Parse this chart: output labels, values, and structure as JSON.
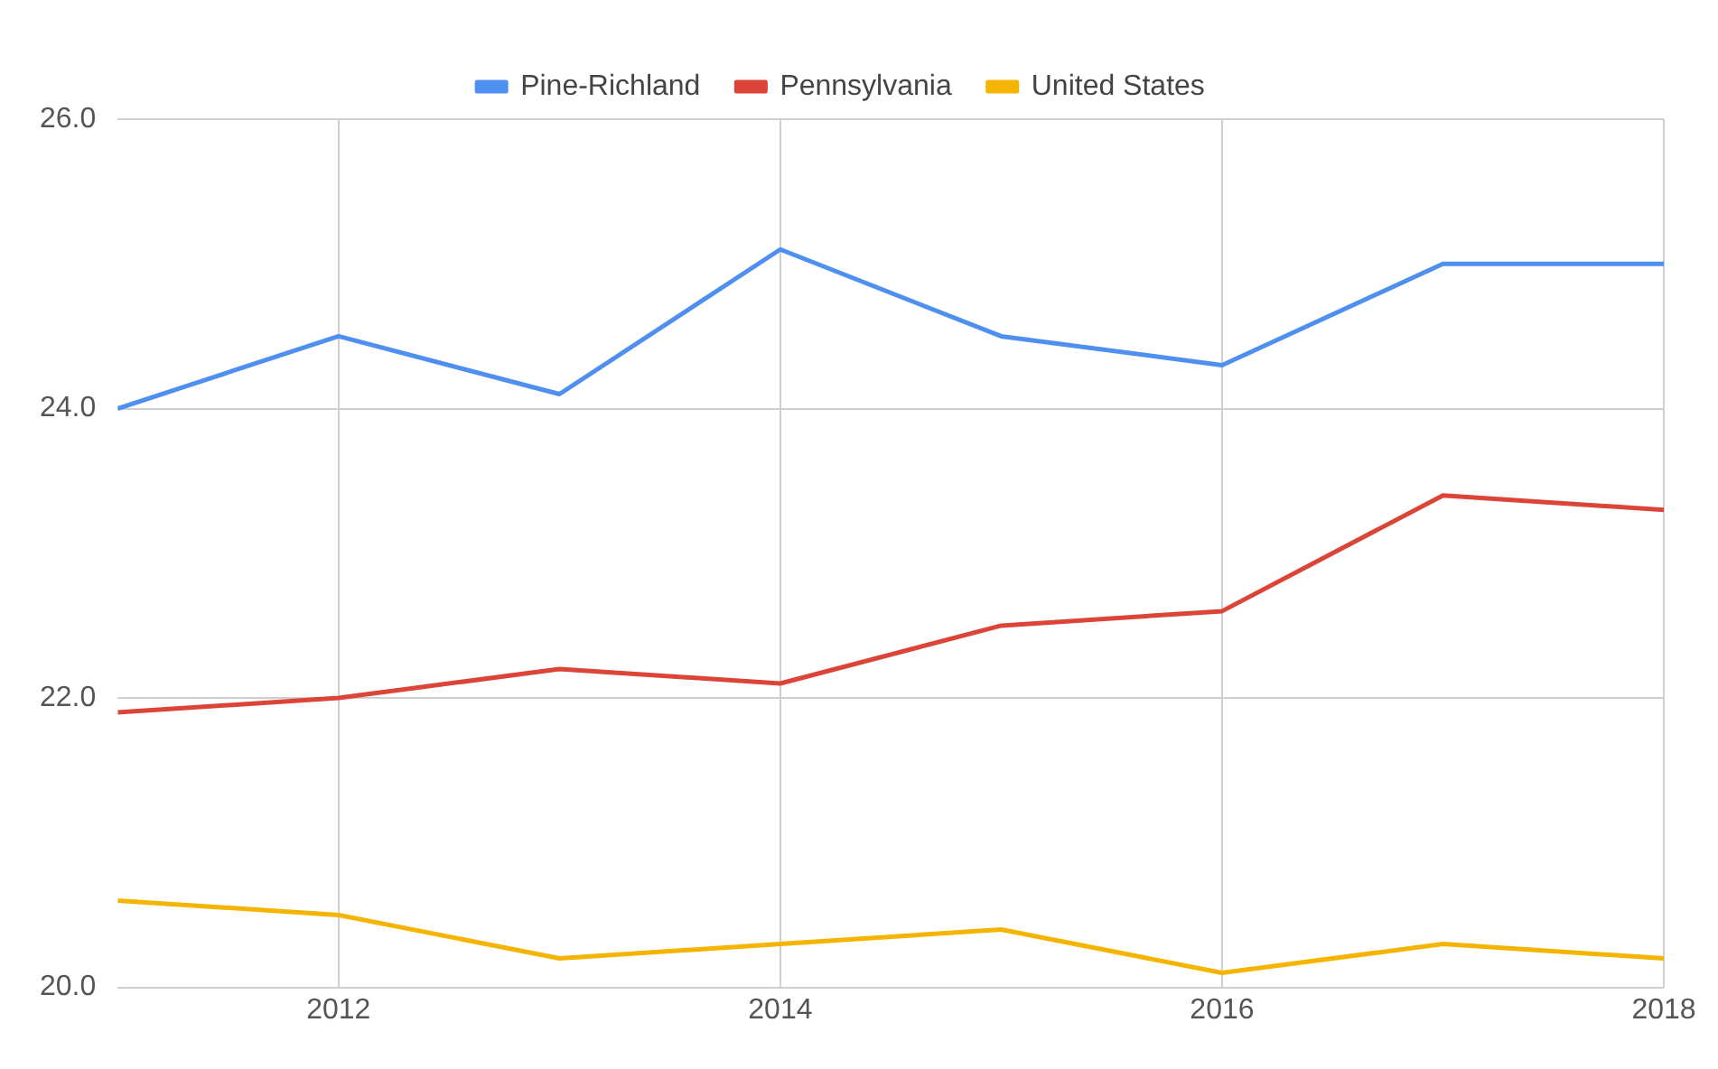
{
  "chart_data": {
    "type": "line",
    "x": [
      2011,
      2012,
      2013,
      2014,
      2015,
      2016,
      2017,
      2018
    ],
    "series": [
      {
        "name": "Pine-Richland",
        "color": "#4f8ff0",
        "values": [
          24.0,
          24.5,
          24.1,
          25.1,
          24.5,
          24.3,
          25.0,
          25.0
        ]
      },
      {
        "name": "Pennsylvania",
        "color": "#db4437",
        "values": [
          21.9,
          22.0,
          22.2,
          22.1,
          22.5,
          22.6,
          23.4,
          23.3
        ]
      },
      {
        "name": "United States",
        "color": "#f4b400",
        "values": [
          20.6,
          20.5,
          20.2,
          20.3,
          20.4,
          20.1,
          20.3,
          20.2
        ]
      }
    ],
    "xlim": [
      2011,
      2018
    ],
    "xticks": [
      2012,
      2014,
      2016,
      2018
    ],
    "ylim": [
      20,
      26
    ],
    "yticks": [
      {
        "value": 20,
        "label": "20.0"
      },
      {
        "value": 22,
        "label": "22.0"
      },
      {
        "value": 24,
        "label": "24.0"
      },
      {
        "value": 26,
        "label": "26.0"
      }
    ],
    "grid": true,
    "legend": "top",
    "marker": "none",
    "line_style": "solid"
  }
}
